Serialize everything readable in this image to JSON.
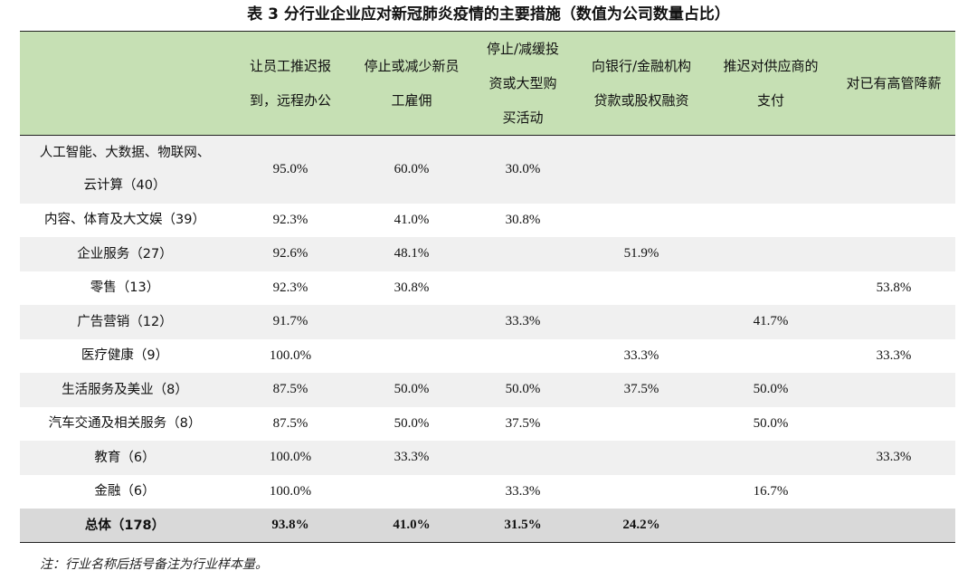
{
  "title": "表 3  分行业企业应对新冠肺炎疫情的主要措施（数值为公司数量占比）",
  "table": {
    "headers": [
      "",
      "让员工推迟报到，远程办公",
      "停止或减少新员工雇佣",
      "停止/减缓投资或大型购买活动",
      "向银行/金融机构贷款或股权融资",
      "推迟对供应商的支付",
      "对已有高管降薪"
    ],
    "rows": [
      [
        "人工智能、大数据、物联网、云计算（40）",
        "95.0%",
        "60.0%",
        "30.0%",
        "",
        "",
        ""
      ],
      [
        "内容、体育及大文娱（39）",
        "92.3%",
        "41.0%",
        "30.8%",
        "",
        "",
        ""
      ],
      [
        "企业服务（27）",
        "92.6%",
        "48.1%",
        "",
        "51.9%",
        "",
        ""
      ],
      [
        "零售（13）",
        "92.3%",
        "30.8%",
        "",
        "",
        "",
        "53.8%"
      ],
      [
        "广告营销（12）",
        "91.7%",
        "",
        "33.3%",
        "",
        "41.7%",
        ""
      ],
      [
        "医疗健康（9）",
        "100.0%",
        "",
        "",
        "33.3%",
        "",
        "33.3%"
      ],
      [
        "生活服务及美业（8）",
        "87.5%",
        "50.0%",
        "50.0%",
        "37.5%",
        "50.0%",
        ""
      ],
      [
        "汽车交通及相关服务（8）",
        "87.5%",
        "50.0%",
        "37.5%",
        "",
        "50.0%",
        ""
      ],
      [
        "教育（6）",
        "100.0%",
        "33.3%",
        "",
        "",
        "",
        "33.3%"
      ],
      [
        "金融（6）",
        "100.0%",
        "",
        "33.3%",
        "",
        "16.7%",
        ""
      ],
      [
        "总体（178）",
        "93.8%",
        "41.0%",
        "31.5%",
        "24.2%",
        "",
        ""
      ]
    ]
  },
  "note": "注：行业名称后括号备注为行业样本量。"
}
